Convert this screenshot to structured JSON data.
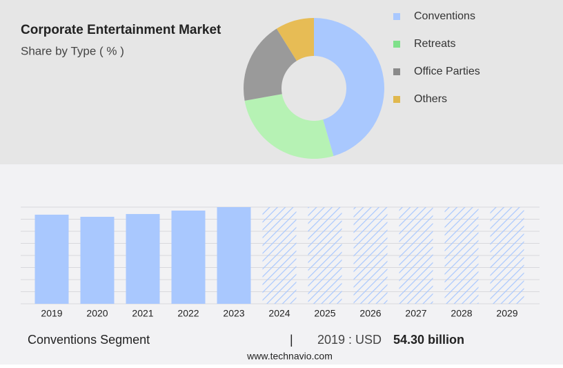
{
  "chart_data": [
    {
      "type": "pie",
      "title": "Corporate Entertainment Market",
      "subtitle": "Share by Type ( % )",
      "categories": [
        "Conventions",
        "Retreats",
        "Office Parties",
        "Others"
      ],
      "values": [
        45.5,
        26.7,
        18.9,
        8.9
      ],
      "colors": [
        "#a9c8fe",
        "#b6f2b4",
        "#9a9a9a",
        "#e7bc55"
      ],
      "legend_colors": [
        "#a9c8fe",
        "#7fe08a",
        "#8a8a8a",
        "#e0b84e"
      ],
      "donut": true
    },
    {
      "type": "bar",
      "categories": [
        "2019",
        "2020",
        "2021",
        "2022",
        "2023",
        "2024",
        "2025",
        "2026",
        "2027",
        "2028",
        "2029"
      ],
      "values": [
        54.3,
        53.0,
        54.7,
        56.8,
        58.9,
        null,
        null,
        null,
        null,
        null,
        null
      ],
      "color": "#a9c8fe",
      "ylim": [
        0,
        58.9
      ],
      "grid": true,
      "forecast_hatched": true
    }
  ],
  "footer": {
    "segment": "Conventions Segment",
    "divider": "|",
    "year_label": "2019 : USD",
    "value_label": "54.30 billion"
  },
  "source": "www.technavio.com"
}
